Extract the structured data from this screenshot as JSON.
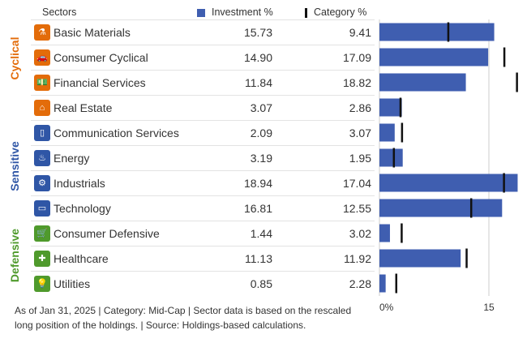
{
  "header": {
    "sectors": "Sectors",
    "investment": "Investment  %",
    "category": "Category  %"
  },
  "groups": {
    "cyclical": "Cyclical",
    "sensitive": "Sensitive",
    "defensive": "Defensive"
  },
  "colors": {
    "cyclical": "#e36c0a",
    "sensitive": "#2f56a6",
    "defensive": "#4f9a2c",
    "bar": "#3f5eb0",
    "marker": "#111111"
  },
  "rows": [
    {
      "name": "Basic Materials",
      "investment": "15.73",
      "category": "9.41",
      "icon": "flask-icon"
    },
    {
      "name": "Consumer Cyclical",
      "investment": "14.90",
      "category": "17.09",
      "icon": "car-icon"
    },
    {
      "name": "Financial Services",
      "investment": "11.84",
      "category": "18.82",
      "icon": "bank-icon"
    },
    {
      "name": "Real Estate",
      "investment": "3.07",
      "category": "2.86",
      "icon": "house-icon"
    },
    {
      "name": "Communication Services",
      "investment": "2.09",
      "category": "3.07",
      "icon": "phone-icon"
    },
    {
      "name": "Energy",
      "investment": "3.19",
      "category": "1.95",
      "icon": "flame-icon"
    },
    {
      "name": "Industrials",
      "investment": "18.94",
      "category": "17.04",
      "icon": "gear-icon"
    },
    {
      "name": "Technology",
      "investment": "16.81",
      "category": "12.55",
      "icon": "monitor-icon"
    },
    {
      "name": "Consumer Defensive",
      "investment": "1.44",
      "category": "3.02",
      "icon": "cart-icon"
    },
    {
      "name": "Healthcare",
      "investment": "11.13",
      "category": "11.92",
      "icon": "cross-icon"
    },
    {
      "name": "Utilities",
      "investment": "0.85",
      "category": "2.28",
      "icon": "bulb-icon"
    }
  ],
  "footnote": "As of Jan 31, 2025 | Category: Mid-Cap | Sector data is based on the rescaled long position of the holdings. | Source: Holdings-based calculations.",
  "chart_data": {
    "type": "bar",
    "orientation": "horizontal",
    "categories": [
      "Basic Materials",
      "Consumer Cyclical",
      "Financial Services",
      "Real Estate",
      "Communication Services",
      "Energy",
      "Industrials",
      "Technology",
      "Consumer Defensive",
      "Healthcare",
      "Utilities"
    ],
    "series": [
      {
        "name": "Investment  %",
        "values": [
          15.73,
          14.9,
          11.84,
          3.07,
          2.09,
          3.19,
          18.94,
          16.81,
          1.44,
          11.13,
          0.85
        ]
      },
      {
        "name": "Category  %",
        "values": [
          9.41,
          17.09,
          18.82,
          2.86,
          3.07,
          1.95,
          17.04,
          12.55,
          3.02,
          11.92,
          2.28
        ]
      }
    ],
    "x_ticks": [
      "0%",
      "15"
    ],
    "xlim": [
      0,
      20
    ],
    "grid": "vertical line at 15"
  }
}
